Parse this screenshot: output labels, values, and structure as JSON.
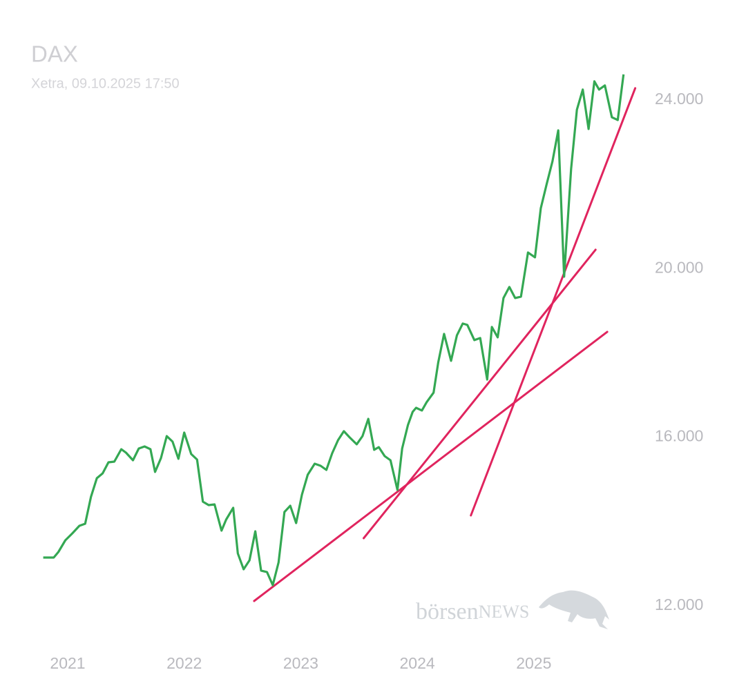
{
  "chart_data": {
    "type": "line",
    "title": "DAX",
    "subtitle": "Xetra, 09.10.2025 17:50",
    "watermark": [
      "börsen",
      "NEWS"
    ],
    "grid": false,
    "xlim": [
      2020.6,
      2026.0
    ],
    "xticks": [
      2021,
      2022,
      2023,
      2024,
      2025
    ],
    "ylim": [
      11000,
      25000
    ],
    "yticks": [
      {
        "value": 12000,
        "label": "12.000"
      },
      {
        "value": 16000,
        "label": "16.000"
      },
      {
        "value": 20000,
        "label": "20.000"
      },
      {
        "value": 24000,
        "label": "24.000"
      }
    ],
    "series": [
      {
        "color": "#34a853",
        "x": [
          2020.79,
          2020.88,
          2020.92,
          2020.98,
          2021.04,
          2021.1,
          2021.15,
          2021.2,
          2021.25,
          2021.3,
          2021.35,
          2021.4,
          2021.46,
          2021.5,
          2021.56,
          2021.61,
          2021.66,
          2021.71,
          2021.75,
          2021.8,
          2021.85,
          2021.9,
          2021.95,
          2022.0,
          2022.06,
          2022.11,
          2022.16,
          2022.21,
          2022.26,
          2022.32,
          2022.36,
          2022.42,
          2022.46,
          2022.51,
          2022.56,
          2022.61,
          2022.66,
          2022.71,
          2022.76,
          2022.81,
          2022.86,
          2022.91,
          2022.96,
          2023.01,
          2023.06,
          2023.12,
          2023.17,
          2023.22,
          2023.27,
          2023.32,
          2023.37,
          2023.42,
          2023.48,
          2023.53,
          2023.58,
          2023.63,
          2023.67,
          2023.72,
          2023.77,
          2023.83,
          2023.87,
          2023.92,
          2023.96,
          2023.99,
          2024.04,
          2024.08,
          2024.14,
          2024.18,
          2024.23,
          2024.29,
          2024.34,
          2024.39,
          2024.43,
          2024.49,
          2024.54,
          2024.6,
          2024.64,
          2024.69,
          2024.74,
          2024.79,
          2024.84,
          2024.89,
          2024.95,
          2025.01,
          2025.06,
          2025.11,
          2025.16,
          2025.21,
          2025.26,
          2025.32,
          2025.37,
          2025.42,
          2025.47,
          2025.52,
          2025.56,
          2025.61,
          2025.67,
          2025.72,
          2025.77
        ],
        "values": [
          13146,
          13146,
          13277,
          13555,
          13719,
          13899,
          13948,
          14586,
          15028,
          15143,
          15405,
          15421,
          15716,
          15634,
          15454,
          15732,
          15781,
          15716,
          15176,
          15503,
          16027,
          15896,
          15487,
          16109,
          15601,
          15470,
          14472,
          14390,
          14406,
          13784,
          14046,
          14325,
          13244,
          12868,
          13080,
          13768,
          12835,
          12802,
          12491,
          13031,
          14226,
          14374,
          13964,
          14636,
          15110,
          15372,
          15323,
          15225,
          15618,
          15929,
          16142,
          15994,
          15831,
          16027,
          16436,
          15700,
          15765,
          15552,
          15454,
          14750,
          15732,
          16289,
          16600,
          16698,
          16633,
          16829,
          17058,
          17779,
          18450,
          17811,
          18417,
          18695,
          18663,
          18302,
          18352,
          17369,
          18613,
          18368,
          19301,
          19563,
          19301,
          19334,
          20381,
          20267,
          21429,
          22002,
          22542,
          23279,
          19808,
          22362,
          23770,
          24245,
          23311,
          24441,
          24245,
          24343,
          23590,
          23524,
          24605
        ]
      }
    ],
    "trendlines": [
      {
        "color": "#e0245e",
        "x": [
          2022.6,
          2025.63
        ],
        "values": [
          12115,
          18499
        ]
      },
      {
        "color": "#e0245e",
        "x": [
          2023.54,
          2025.53
        ],
        "values": [
          13604,
          20447
        ]
      },
      {
        "color": "#e0245e",
        "x": [
          2024.46,
          2025.87
        ],
        "values": [
          14144,
          24278
        ]
      }
    ]
  }
}
